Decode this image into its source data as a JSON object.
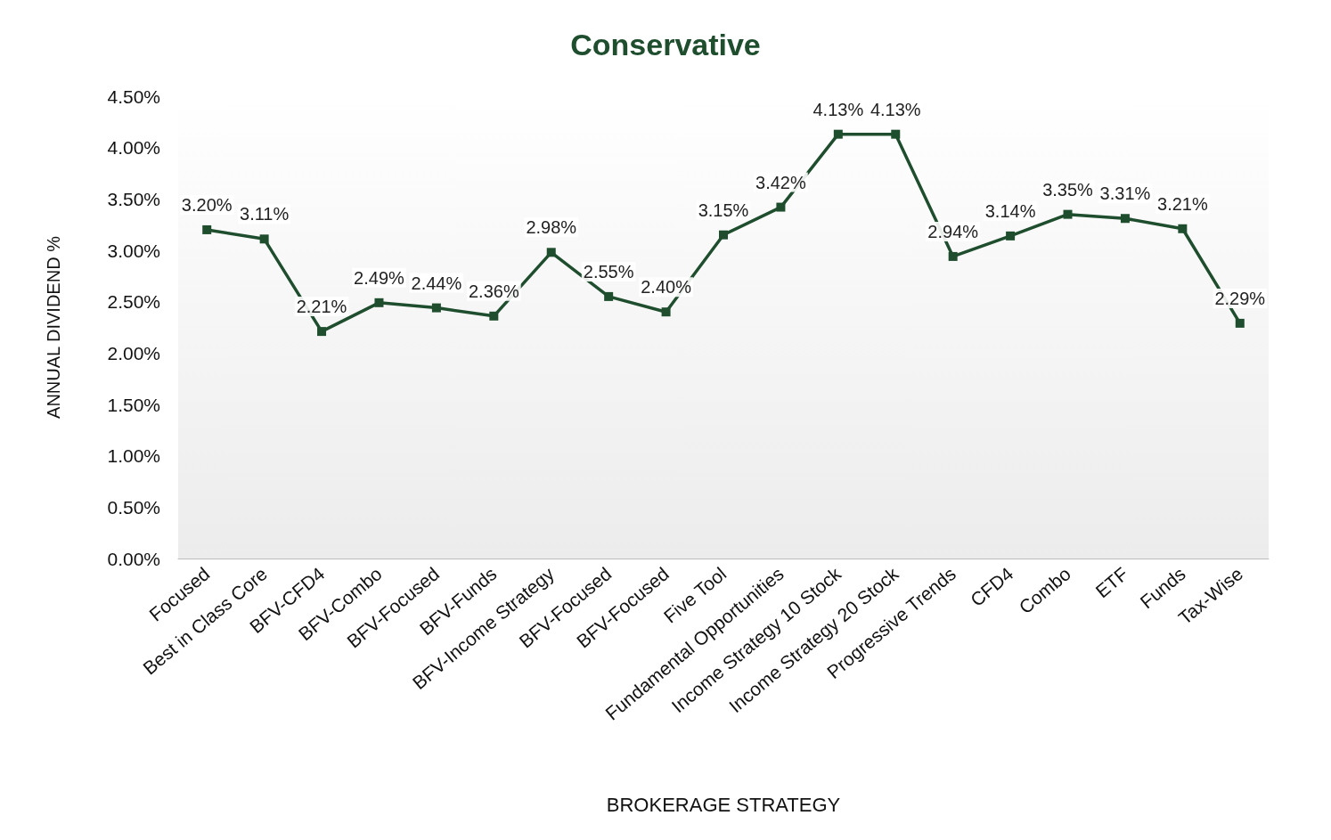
{
  "chart_data": {
    "type": "line",
    "title": "Conservative",
    "xlabel": "BROKERAGE STRATEGY",
    "ylabel": "ANNUAL DIVIDEND %",
    "categories": [
      "Focused",
      "Best in Class Core",
      "BFV-CFD4",
      "BFV-Combo",
      "BFV-Focused",
      "BFV-Funds",
      "BFV-Income Strategy",
      "BFV-Focused",
      "BFV-Focused",
      "Five Tool",
      "Fundamental Opportunities",
      "Income Strategy 10 Stock",
      "Income Strategy 20 Stock",
      "Progressive Trends",
      "CFD4",
      "Combo",
      "ETF",
      "Funds",
      "Tax-Wise"
    ],
    "series": [
      {
        "color": "#1f4e2e",
        "values": [
          3.2,
          3.11,
          2.21,
          2.49,
          2.44,
          2.36,
          2.98,
          2.55,
          2.4,
          3.15,
          3.42,
          4.13,
          4.13,
          2.94,
          3.14,
          3.35,
          3.31,
          3.21,
          2.29
        ],
        "value_labels": [
          "3.20%",
          "3.11%",
          "2.21%",
          "2.49%",
          "2.44%",
          "2.36%",
          "2.98%",
          "2.55%",
          "2.40%",
          "3.15%",
          "3.42%",
          "4.13%",
          "4.13%",
          "2.94%",
          "3.14%",
          "3.35%",
          "3.31%",
          "3.21%",
          "2.29%"
        ]
      }
    ],
    "ylim": [
      0,
      4.5
    ],
    "yticks": [
      {
        "value": 0,
        "label": "0.00%"
      },
      {
        "value": 0.5,
        "label": "0.50%"
      },
      {
        "value": 1,
        "label": "1.00%"
      },
      {
        "value": 1.5,
        "label": "1.50%"
      },
      {
        "value": 2,
        "label": "2.00%"
      },
      {
        "value": 2.5,
        "label": "2.50%"
      },
      {
        "value": 3,
        "label": "3.00%"
      },
      {
        "value": 3.5,
        "label": "3.50%"
      },
      {
        "value": 4,
        "label": "4.00%"
      },
      {
        "value": 4.5,
        "label": "4.50%"
      }
    ],
    "marker": "square",
    "line_style": "solid",
    "grid": false
  }
}
